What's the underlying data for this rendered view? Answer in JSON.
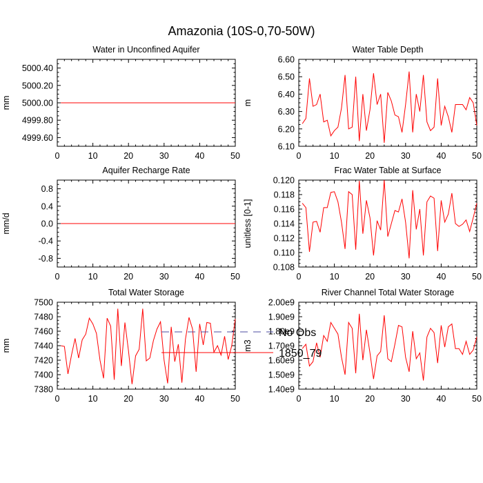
{
  "figure_title": "Amazonia (10S-0,70-50W)",
  "legend": {
    "entries": [
      {
        "label": "No Obs",
        "style": "dashed",
        "color": "#4a4aa0"
      },
      {
        "label": "1850_79",
        "style": "solid",
        "color": "#ff0000"
      }
    ]
  },
  "chart_data": [
    {
      "type": "line",
      "title": "Water in Unconfined Aquifer",
      "ylabel": "mm",
      "xlabel": "",
      "xlim": [
        0,
        50
      ],
      "ylim": [
        4999.5,
        5000.5
      ],
      "xticks": [
        0,
        10,
        20,
        30,
        40,
        50
      ],
      "yticks": [
        4999.6,
        4999.8,
        5000.0,
        5000.2,
        5000.4
      ],
      "yticklabels": [
        "4999.60",
        "4999.80",
        "5000.00",
        "5000.20",
        "5000.40"
      ],
      "series": [
        {
          "name": "1850_79",
          "color": "#ff0000",
          "x": [
            1,
            50
          ],
          "y": [
            5000.0,
            5000.0
          ]
        }
      ]
    },
    {
      "type": "line",
      "title": "Water Table Depth",
      "ylabel": "m",
      "xlabel": "",
      "xlim": [
        0,
        50
      ],
      "ylim": [
        6.1,
        6.6
      ],
      "xticks": [
        0,
        10,
        20,
        30,
        40,
        50
      ],
      "yticks": [
        6.1,
        6.2,
        6.3,
        6.4,
        6.5,
        6.6
      ],
      "yticklabels": [
        "6.10",
        "6.20",
        "6.30",
        "6.40",
        "6.50",
        "6.60"
      ],
      "series": [
        {
          "name": "1850_79",
          "color": "#ff0000",
          "x": [
            1,
            2,
            3,
            4,
            5,
            6,
            7,
            8,
            9,
            10,
            11,
            12,
            13,
            14,
            15,
            16,
            17,
            18,
            19,
            20,
            21,
            22,
            23,
            24,
            25,
            26,
            27,
            28,
            29,
            30,
            31,
            32,
            33,
            34,
            35,
            36,
            37,
            38,
            39,
            40,
            41,
            42,
            43,
            44,
            45,
            46,
            47,
            48,
            49,
            50
          ],
          "y": [
            6.23,
            6.26,
            6.49,
            6.33,
            6.34,
            6.4,
            6.24,
            6.25,
            6.16,
            6.19,
            6.21,
            6.32,
            6.51,
            6.2,
            6.21,
            6.5,
            6.13,
            6.4,
            6.19,
            6.31,
            6.52,
            6.34,
            6.4,
            6.12,
            6.41,
            6.36,
            6.28,
            6.27,
            6.18,
            6.34,
            6.53,
            6.18,
            6.4,
            6.3,
            6.51,
            6.24,
            6.19,
            6.21,
            6.49,
            6.22,
            6.33,
            6.27,
            6.18,
            6.34,
            6.34,
            6.34,
            6.31,
            6.38,
            6.35,
            6.22
          ]
        }
      ]
    },
    {
      "type": "line",
      "title": "Aquifer Recharge Rate",
      "ylabel": "mm/d",
      "xlabel": "",
      "xlim": [
        0,
        50
      ],
      "ylim": [
        -1.0,
        1.0
      ],
      "xticks": [
        0,
        10,
        20,
        30,
        40,
        50
      ],
      "yticks": [
        -0.8,
        -0.4,
        0.0,
        0.4,
        0.8
      ],
      "yticklabels": [
        "-0.8",
        "-0.4",
        "0.0",
        "0.4",
        "0.8"
      ],
      "series": [
        {
          "name": "1850_79",
          "color": "#ff0000",
          "x": [
            1,
            50
          ],
          "y": [
            0.0,
            0.0
          ]
        }
      ]
    },
    {
      "type": "line",
      "title": "Frac Water Table at Surface",
      "ylabel": "unitless [0-1]",
      "xlabel": "",
      "xlim": [
        0,
        50
      ],
      "ylim": [
        0.108,
        0.12
      ],
      "xticks": [
        0,
        10,
        20,
        30,
        40,
        50
      ],
      "yticks": [
        0.108,
        0.11,
        0.112,
        0.114,
        0.116,
        0.118,
        0.12
      ],
      "yticklabels": [
        "0.108",
        "0.110",
        "0.112",
        "0.114",
        "0.116",
        "0.118",
        "0.120"
      ],
      "series": [
        {
          "name": "1850_79",
          "color": "#ff0000",
          "x": [
            1,
            2,
            3,
            4,
            5,
            6,
            7,
            8,
            9,
            10,
            11,
            12,
            13,
            14,
            15,
            16,
            17,
            18,
            19,
            20,
            21,
            22,
            23,
            24,
            25,
            26,
            27,
            28,
            29,
            30,
            31,
            32,
            33,
            34,
            35,
            36,
            37,
            38,
            39,
            40,
            41,
            42,
            43,
            44,
            45,
            46,
            47,
            48,
            49,
            50
          ],
          "y": [
            0.1168,
            0.1162,
            0.1101,
            0.1142,
            0.1143,
            0.1128,
            0.1162,
            0.1162,
            0.1183,
            0.1184,
            0.117,
            0.1142,
            0.1105,
            0.1184,
            0.118,
            0.1104,
            0.1199,
            0.1126,
            0.1172,
            0.1148,
            0.1096,
            0.1144,
            0.1131,
            0.12,
            0.1122,
            0.114,
            0.1158,
            0.1156,
            0.1174,
            0.1142,
            0.1092,
            0.1186,
            0.1132,
            0.116,
            0.1096,
            0.117,
            0.1178,
            0.1175,
            0.1102,
            0.1172,
            0.1142,
            0.1153,
            0.1182,
            0.114,
            0.1136,
            0.1139,
            0.1145,
            0.1129,
            0.1148,
            0.1168
          ]
        }
      ]
    },
    {
      "type": "line",
      "title": "Total Water Storage",
      "ylabel": "mm",
      "xlabel": "",
      "xlim": [
        0,
        50
      ],
      "ylim": [
        7380,
        7500
      ],
      "xticks": [
        0,
        10,
        20,
        30,
        40,
        50
      ],
      "yticks": [
        7380,
        7400,
        7420,
        7440,
        7460,
        7480,
        7500
      ],
      "yticklabels": [
        "7380",
        "7400",
        "7420",
        "7440",
        "7460",
        "7480",
        "7500"
      ],
      "series": [
        {
          "name": "1850_79",
          "color": "#ff0000",
          "x": [
            1,
            2,
            3,
            4,
            5,
            6,
            7,
            8,
            9,
            10,
            11,
            12,
            13,
            14,
            15,
            16,
            17,
            18,
            19,
            20,
            21,
            22,
            23,
            24,
            25,
            26,
            27,
            28,
            29,
            30,
            31,
            32,
            33,
            34,
            35,
            36,
            37,
            38,
            39,
            40,
            41,
            42,
            43,
            44,
            45,
            46,
            47,
            48,
            49,
            50
          ],
          "y": [
            7440,
            7439,
            7401,
            7427,
            7450,
            7423,
            7448,
            7456,
            7478,
            7470,
            7457,
            7420,
            7395,
            7478,
            7467,
            7393,
            7491,
            7412,
            7472,
            7433,
            7387,
            7426,
            7435,
            7491,
            7419,
            7423,
            7447,
            7463,
            7473,
            7420,
            7388,
            7466,
            7418,
            7442,
            7389,
            7449,
            7479,
            7463,
            7404,
            7470,
            7441,
            7472,
            7471,
            7431,
            7440,
            7427,
            7453,
            7421,
            7440,
            7477
          ]
        }
      ]
    },
    {
      "type": "line",
      "title": "River Channel Total Water Storage",
      "ylabel": "m3",
      "xlabel": "",
      "xlim": [
        0,
        50
      ],
      "ylim": [
        1400000000.0,
        2000000000.0
      ],
      "xticks": [
        0,
        10,
        20,
        30,
        40,
        50
      ],
      "yticks": [
        1400000000.0,
        1500000000.0,
        1600000000.0,
        1700000000.0,
        1800000000.0,
        1900000000.0,
        2000000000.0
      ],
      "yticklabels": [
        "1.40e9",
        "1.50e9",
        "1.60e9",
        "1.70e9",
        "1.80e9",
        "1.90e9",
        "2.00e9"
      ],
      "series": [
        {
          "name": "1850_79",
          "color": "#ff0000",
          "x": [
            1,
            2,
            3,
            4,
            5,
            6,
            7,
            8,
            9,
            10,
            11,
            12,
            13,
            14,
            15,
            16,
            17,
            18,
            19,
            20,
            21,
            22,
            23,
            24,
            25,
            26,
            27,
            28,
            29,
            30,
            31,
            32,
            33,
            34,
            35,
            36,
            37,
            38,
            39,
            40,
            41,
            42,
            43,
            44,
            45,
            46,
            47,
            48,
            49,
            50
          ],
          "y": [
            1680000000.0,
            1710000000.0,
            1560000000.0,
            1590000000.0,
            1720000000.0,
            1620000000.0,
            1770000000.0,
            1730000000.0,
            1860000000.0,
            1820000000.0,
            1780000000.0,
            1620000000.0,
            1500000000.0,
            1860000000.0,
            1820000000.0,
            1510000000.0,
            1920000000.0,
            1600000000.0,
            1810000000.0,
            1650000000.0,
            1470000000.0,
            1630000000.0,
            1660000000.0,
            1910000000.0,
            1610000000.0,
            1590000000.0,
            1710000000.0,
            1840000000.0,
            1830000000.0,
            1620000000.0,
            1520000000.0,
            1800000000.0,
            1610000000.0,
            1650000000.0,
            1460000000.0,
            1760000000.0,
            1820000000.0,
            1790000000.0,
            1580000000.0,
            1840000000.0,
            1690000000.0,
            1830000000.0,
            1850000000.0,
            1680000000.0,
            1680000000.0,
            1640000000.0,
            1730000000.0,
            1640000000.0,
            1670000000.0,
            1760000000.0
          ]
        }
      ]
    }
  ]
}
